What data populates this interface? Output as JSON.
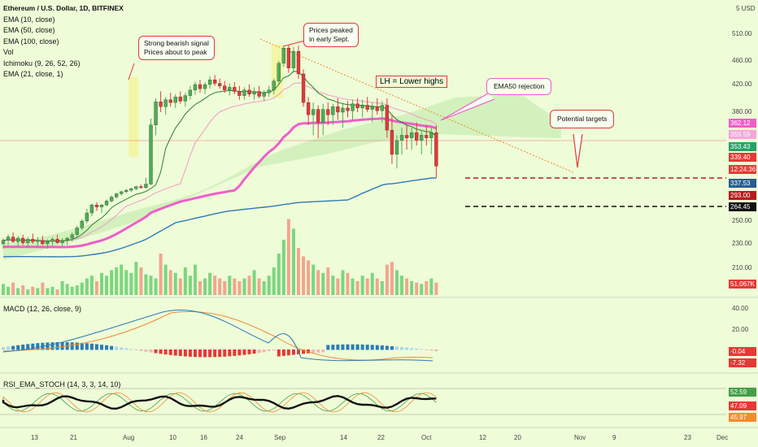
{
  "chart_data": [
    {
      "type": "candlestick",
      "title": "Ethereum / U.S. Dollar, 1D, BITFINEX",
      "indicators": [
        "EMA (10, close)",
        "EMA (50, close)",
        "EMA (100, close)",
        "Vol",
        "Ichimoku (9, 26, 52, 26)",
        "EMA (21, close, 1)"
      ],
      "currency_label": "5 USD",
      "y_ticks": [
        "510.00",
        "460.00",
        "420.00",
        "380.00",
        "250.00",
        "230.00",
        "210.00"
      ],
      "x_ticks": [
        "13",
        "21",
        "Aug",
        "10",
        "16",
        "24",
        "Sep",
        "14",
        "22",
        "Oct",
        "12",
        "20",
        "Nov",
        "9",
        "23",
        "Dec"
      ],
      "price_tags": [
        {
          "label": "362.12",
          "color": "#ee5ecb"
        },
        {
          "label": "359.59",
          "color": "#f6a5dc"
        },
        {
          "label": "353.43",
          "color": "#26a269"
        },
        {
          "label": "339.40",
          "color": "#e53935"
        },
        {
          "label": "12:24:36",
          "color": "#e53935"
        },
        {
          "label": "337.53",
          "color": "#2a5d8f"
        },
        {
          "label": "293.00",
          "color": "#b71c1c"
        },
        {
          "label": "264.45",
          "color": "#111111"
        },
        {
          "label": "51.067K",
          "color": "#e53935"
        }
      ],
      "support_levels": [
        293.0,
        264.45
      ],
      "ohlc": [
        [
          230,
          235,
          226,
          233
        ],
        [
          233,
          238,
          229,
          236
        ],
        [
          236,
          240,
          231,
          232
        ],
        [
          232,
          237,
          228,
          235
        ],
        [
          235,
          238,
          229,
          231
        ],
        [
          231,
          236,
          227,
          234
        ],
        [
          234,
          239,
          230,
          232
        ],
        [
          232,
          236,
          228,
          233
        ],
        [
          233,
          237,
          229,
          230
        ],
        [
          230,
          234,
          226,
          232
        ],
        [
          232,
          236,
          228,
          234
        ],
        [
          234,
          238,
          230,
          231
        ],
        [
          231,
          235,
          228,
          233
        ],
        [
          233,
          236,
          229,
          235
        ],
        [
          235,
          240,
          232,
          238
        ],
        [
          238,
          246,
          236,
          244
        ],
        [
          244,
          252,
          242,
          250
        ],
        [
          250,
          262,
          248,
          258
        ],
        [
          258,
          272,
          255,
          268
        ],
        [
          268,
          275,
          260,
          264
        ],
        [
          264,
          270,
          258,
          268
        ],
        [
          268,
          282,
          265,
          278
        ],
        [
          278,
          292,
          275,
          288
        ],
        [
          288,
          302,
          284,
          298
        ],
        [
          298,
          310,
          292,
          306
        ],
        [
          306,
          316,
          300,
          312
        ],
        [
          312,
          322,
          305,
          318
        ],
        [
          318,
          330,
          312,
          326
        ],
        [
          326,
          334,
          318,
          322
        ],
        [
          322,
          340,
          318,
          336
        ],
        [
          336,
          375,
          332,
          370
        ],
        [
          370,
          400,
          362,
          395
        ],
        [
          395,
          410,
          380,
          388
        ],
        [
          388,
          402,
          378,
          398
        ],
        [
          398,
          408,
          388,
          394
        ],
        [
          394,
          406,
          386,
          402
        ],
        [
          402,
          410,
          392,
          396
        ],
        [
          396,
          408,
          388,
          404
        ],
        [
          404,
          418,
          398,
          412
        ],
        [
          412,
          425,
          405,
          420
        ],
        [
          420,
          428,
          408,
          414
        ],
        [
          414,
          424,
          406,
          420
        ],
        [
          420,
          434,
          414,
          428
        ],
        [
          428,
          436,
          418,
          422
        ],
        [
          422,
          430,
          414,
          418
        ],
        [
          418,
          426,
          408,
          412
        ],
        [
          412,
          422,
          404,
          416
        ],
        [
          416,
          424,
          406,
          410
        ],
        [
          410,
          418,
          398,
          404
        ],
        [
          404,
          416,
          398,
          412
        ],
        [
          412,
          420,
          402,
          406
        ],
        [
          406,
          416,
          398,
          410
        ],
        [
          410,
          418,
          400,
          403
        ],
        [
          403,
          412,
          396,
          408
        ],
        [
          408,
          418,
          402,
          412
        ],
        [
          412,
          430,
          406,
          426
        ],
        [
          426,
          460,
          420,
          456
        ],
        [
          456,
          488,
          450,
          484
        ],
        [
          484,
          490,
          440,
          448
        ],
        [
          448,
          486,
          440,
          478
        ],
        [
          478,
          488,
          430,
          438
        ],
        [
          438,
          446,
          388,
          394
        ],
        [
          394,
          402,
          370,
          378
        ],
        [
          378,
          394,
          362,
          384
        ],
        [
          384,
          390,
          360,
          372
        ],
        [
          372,
          392,
          362,
          384
        ],
        [
          384,
          394,
          370,
          378
        ],
        [
          378,
          392,
          370,
          388
        ],
        [
          388,
          400,
          374,
          380
        ],
        [
          380,
          392,
          368,
          386
        ],
        [
          386,
          396,
          376,
          382
        ],
        [
          382,
          398,
          374,
          392
        ],
        [
          392,
          400,
          380,
          386
        ],
        [
          386,
          398,
          376,
          390
        ],
        [
          390,
          402,
          380,
          384
        ],
        [
          384,
          394,
          372,
          388
        ],
        [
          388,
          400,
          378,
          382
        ],
        [
          382,
          396,
          372,
          390
        ],
        [
          390,
          400,
          360,
          366
        ],
        [
          366,
          378,
          346,
          350
        ],
        [
          350,
          362,
          344,
          358
        ],
        [
          358,
          368,
          350,
          362
        ],
        [
          362,
          370,
          352,
          360
        ],
        [
          360,
          368,
          352,
          364
        ],
        [
          364,
          372,
          354,
          358
        ],
        [
          358,
          366,
          350,
          362
        ],
        [
          362,
          370,
          354,
          360
        ],
        [
          360,
          368,
          350,
          364
        ],
        [
          364,
          370,
          340,
          345
        ]
      ],
      "volume_series": [
        {
          "name": "Vol",
          "values": [
            8,
            6,
            9,
            5,
            7,
            4,
            6,
            5,
            9,
            5,
            6,
            4,
            10,
            8,
            6,
            7,
            9,
            12,
            14,
            10,
            16,
            14,
            18,
            20,
            22,
            18,
            16,
            24,
            20,
            15,
            14,
            12,
            30,
            22,
            18,
            16,
            12,
            20,
            14,
            22,
            10,
            12,
            16,
            14,
            12,
            10,
            14,
            12,
            10,
            12,
            14,
            18,
            12,
            10,
            14,
            20,
            30,
            40,
            55,
            48,
            34,
            28,
            25,
            22,
            18,
            16,
            20,
            14,
            12,
            18,
            16,
            12,
            10,
            14,
            12,
            16,
            12,
            10,
            22,
            24,
            18,
            14,
            12,
            10,
            9,
            8,
            10,
            12,
            9
          ]
        }
      ],
      "macd_ticks": [
        "40.00",
        "20.00",
        "-0.04",
        "-7.32"
      ],
      "macd_label": "MACD (12, 26, close, 9)",
      "rsi_label": "RSI_EMA_STOCH (14, 3, 3, 14, 10)",
      "rsi_ticks": [
        "52.59",
        "47.09",
        "45.97"
      ]
    }
  ],
  "callouts": {
    "bearish": "Strong bearish signal\nPrices about to peak",
    "peaked": "Prices peaked\nin early Sept.",
    "lh": "LH = Lower highs",
    "ema50": "EMA50 rejection",
    "targets": "Potential targets"
  },
  "colors": {
    "background": "#eefcd8",
    "up_candle": "#4caf50",
    "down_candle": "#e53935",
    "ema50": "#ee5ecb",
    "ema100": "#2a7bb8",
    "highlight": "#f3f5a0"
  }
}
